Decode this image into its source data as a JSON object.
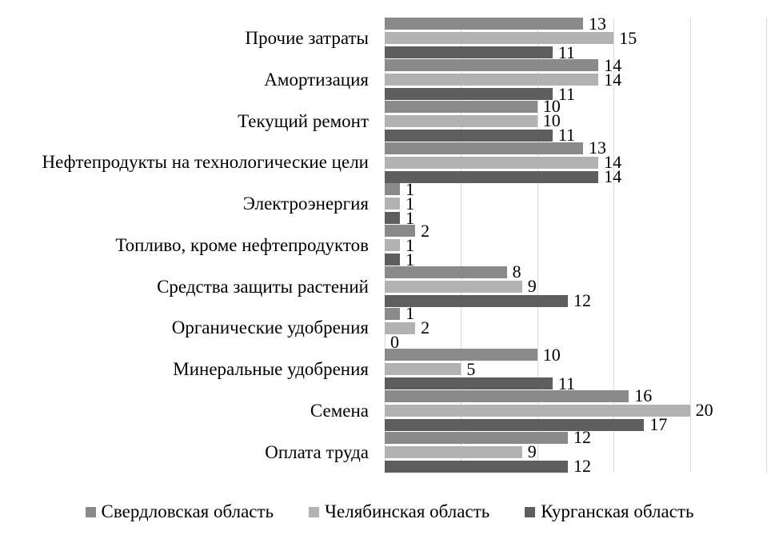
{
  "chart_data": {
    "type": "bar",
    "orientation": "horizontal",
    "title": "",
    "xlabel": "",
    "ylabel": "",
    "xlim": [
      0,
      25
    ],
    "gridline_step": 5,
    "grid_on": true,
    "grid_color": "#D9D9D9",
    "data_labels": true,
    "legend_position": "bottom",
    "categories": [
      "Прочие затраты",
      "Амортизация",
      "Текущий ремонт",
      "Нефтепродукты на технологические цели",
      "Электроэнергия",
      "Топливо, кроме нефтепродуктов",
      "Средства защиты растений",
      "Органические удобрения",
      "Минеральные удобрения",
      "Семена",
      "Оплата труда"
    ],
    "series": [
      {
        "name": "Свердловская область",
        "key": "sverdlovskaya-oblast",
        "color": "#8A8A8A",
        "values": [
          13,
          14,
          10,
          13,
          1,
          2,
          8,
          1,
          10,
          16,
          12
        ]
      },
      {
        "name": "Челябинская область",
        "key": "chelyabinskaya-oblast",
        "color": "#B2B2B2",
        "values": [
          15,
          14,
          10,
          14,
          1,
          1,
          9,
          2,
          5,
          20,
          9
        ]
      },
      {
        "name": "Курганская область",
        "key": "kurganskaya-oblast",
        "color": "#5E5E5E",
        "values": [
          11,
          11,
          11,
          14,
          1,
          1,
          12,
          0,
          11,
          17,
          12
        ]
      }
    ]
  }
}
